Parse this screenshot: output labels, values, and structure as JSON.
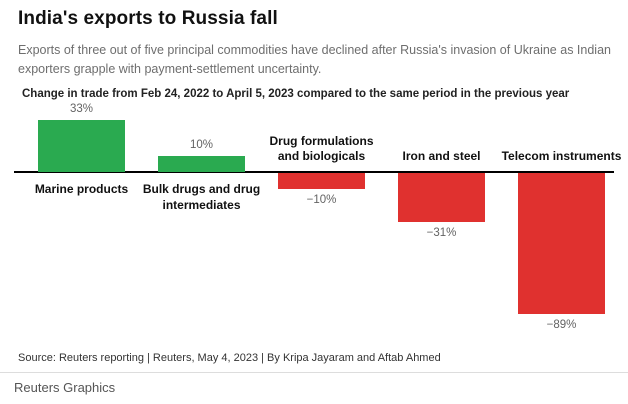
{
  "header": {
    "title": "India's exports to Russia fall",
    "subtitle": "Exports of three out of five principal commodities have declined after Russia's invasion of Ukraine as Indian exporters grapple with payment-settlement uncertainty.",
    "axis_note": "Change in trade from Feb 24, 2022 to April 5, 2023 compared to the same period in the previous year"
  },
  "chart_data": {
    "type": "bar",
    "title": "Change in trade from Feb 24, 2022 to April 5, 2023 compared to the same period in the previous year",
    "categories": [
      "Marine products",
      "Bulk drugs and drug intermediates",
      "Drug formulations and biologicals",
      "Iron and steel",
      "Telecom instruments"
    ],
    "values": [
      33,
      10,
      -10,
      -31,
      -89
    ],
    "value_labels": [
      "33%",
      "10%",
      "−10%",
      "−31%",
      "−89%"
    ],
    "unit": "%",
    "ylim": [
      -100,
      40
    ],
    "grid": false,
    "legend": false,
    "positive_color": "#2aaa50",
    "negative_color": "#e0312f",
    "baseline_color": "#000000"
  },
  "footer": {
    "source": "Source: Reuters reporting | Reuters, May 4, 2023 | By Kripa Jayaram and Aftab Ahmed",
    "brand": "Reuters Graphics"
  }
}
